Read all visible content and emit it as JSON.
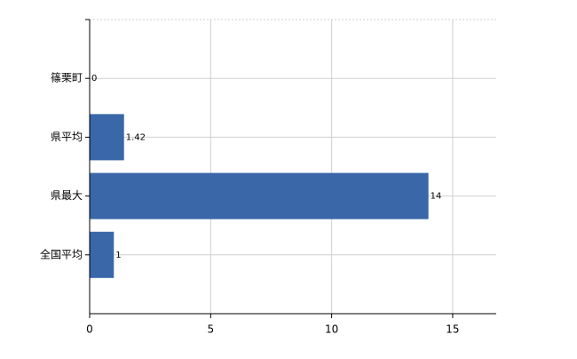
{
  "chart_data": {
    "type": "bar",
    "orientation": "horizontal",
    "categories": [
      "篠栗町",
      "県平均",
      "県最大",
      "全国平均"
    ],
    "values": [
      0,
      1.42,
      14,
      1
    ],
    "color": "#3a67a8",
    "xlim": [
      0,
      16.8
    ],
    "xticks": [
      0,
      5,
      10,
      15
    ],
    "grid": true
  }
}
